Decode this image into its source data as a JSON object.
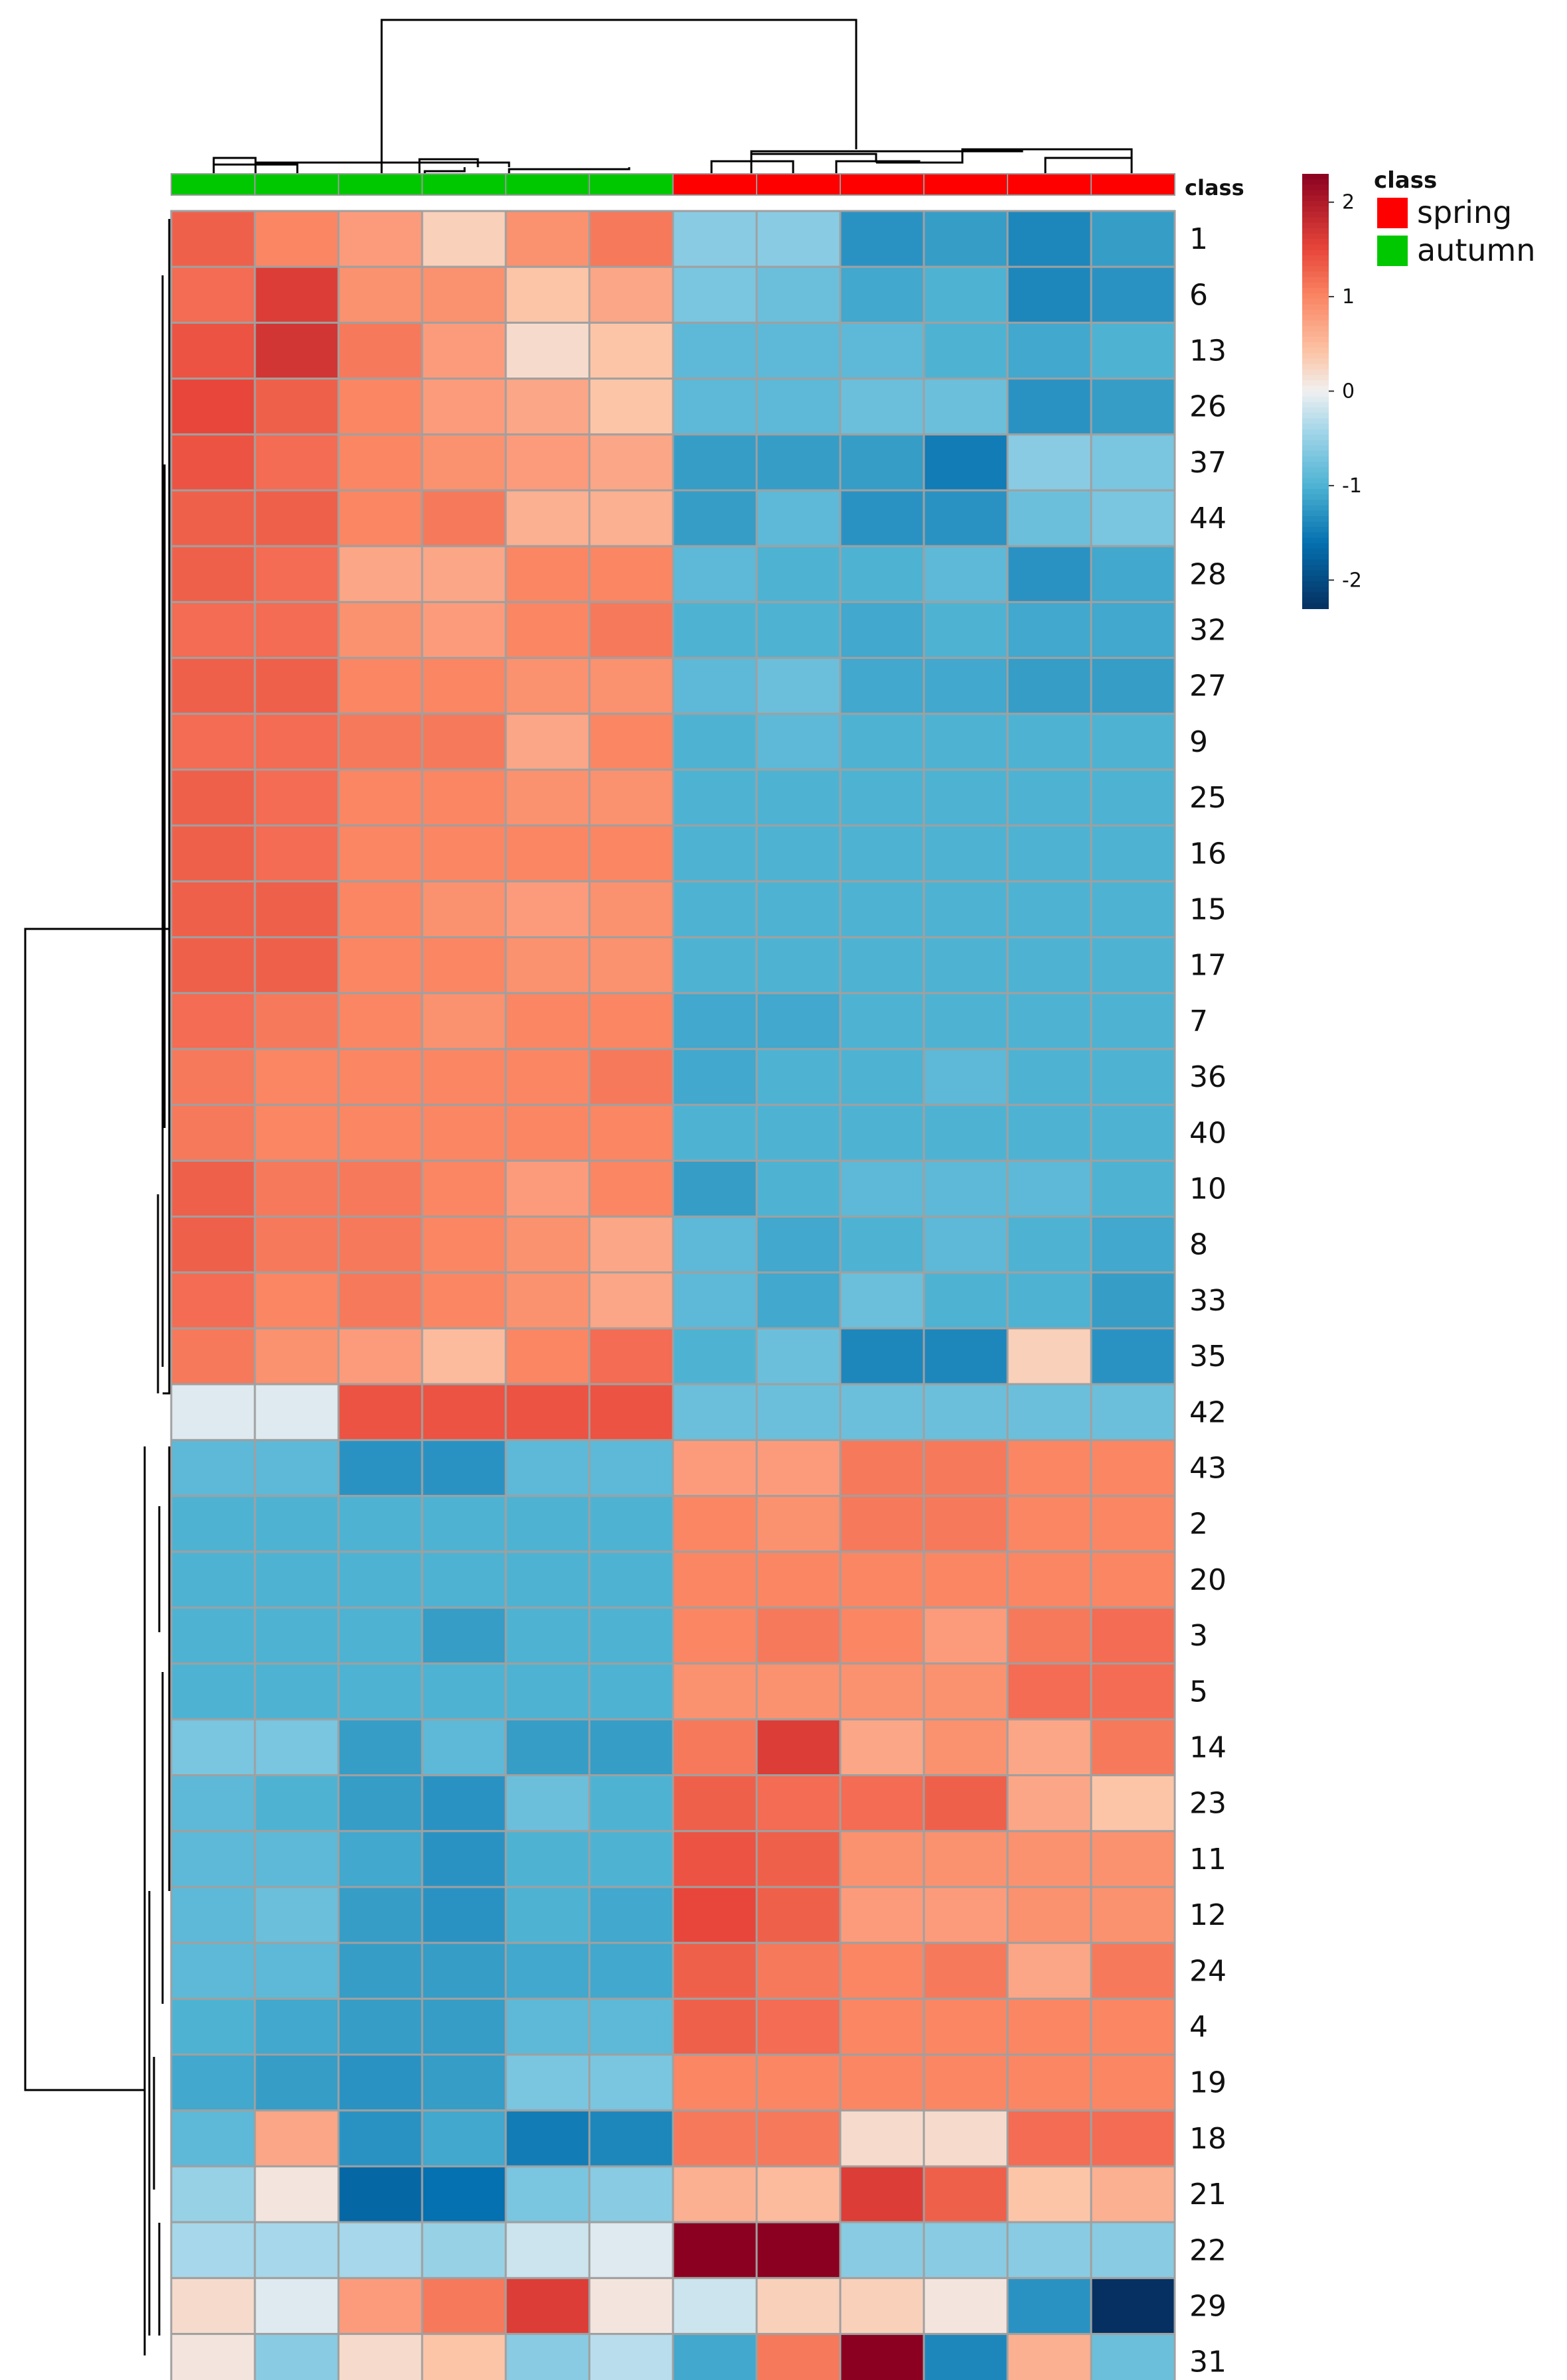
{
  "chart_data": {
    "type": "heatmap",
    "title": "",
    "class_label": "class",
    "columns": [
      {
        "class": "autumn"
      },
      {
        "class": "autumn"
      },
      {
        "class": "autumn"
      },
      {
        "class": "autumn"
      },
      {
        "class": "autumn"
      },
      {
        "class": "autumn"
      },
      {
        "class": "spring"
      },
      {
        "class": "spring"
      },
      {
        "class": "spring"
      },
      {
        "class": "spring"
      },
      {
        "class": "spring"
      },
      {
        "class": "spring"
      }
    ],
    "row_labels": [
      "1",
      "6",
      "13",
      "26",
      "37",
      "44",
      "28",
      "32",
      "27",
      "9",
      "25",
      "16",
      "15",
      "17",
      "7",
      "36",
      "40",
      "10",
      "8",
      "33",
      "35",
      "42",
      "43",
      "2",
      "20",
      "3",
      "5",
      "14",
      "23",
      "11",
      "12",
      "24",
      "4",
      "19",
      "18",
      "21",
      "22",
      "29",
      "31"
    ],
    "values": [
      [
        1.3,
        1.0,
        0.8,
        0.3,
        0.9,
        1.1,
        -0.6,
        -0.6,
        -1.3,
        -1.2,
        -1.4,
        -1.2
      ],
      [
        1.2,
        1.6,
        0.9,
        0.9,
        0.4,
        0.7,
        -0.7,
        -0.8,
        -1.1,
        -1.0,
        -1.4,
        -1.3
      ],
      [
        1.4,
        1.7,
        1.1,
        0.8,
        0.2,
        0.4,
        -0.9,
        -0.9,
        -0.9,
        -1.0,
        -1.1,
        -1.0
      ],
      [
        1.5,
        1.3,
        1.0,
        0.8,
        0.7,
        0.4,
        -0.9,
        -0.9,
        -0.8,
        -0.8,
        -1.3,
        -1.2
      ],
      [
        1.4,
        1.2,
        1.0,
        0.9,
        0.8,
        0.7,
        -1.2,
        -1.2,
        -1.2,
        -1.5,
        -0.6,
        -0.7
      ],
      [
        1.3,
        1.3,
        1.0,
        1.1,
        0.6,
        0.6,
        -1.2,
        -0.9,
        -1.3,
        -1.3,
        -0.8,
        -0.7
      ],
      [
        1.3,
        1.2,
        0.7,
        0.7,
        1.0,
        1.0,
        -0.9,
        -1.0,
        -1.0,
        -0.9,
        -1.3,
        -1.1
      ],
      [
        1.2,
        1.2,
        0.9,
        0.8,
        1.0,
        1.1,
        -1.0,
        -1.0,
        -1.1,
        -1.0,
        -1.1,
        -1.1
      ],
      [
        1.3,
        1.3,
        1.0,
        1.0,
        0.9,
        0.9,
        -0.9,
        -0.8,
        -1.1,
        -1.1,
        -1.2,
        -1.2
      ],
      [
        1.2,
        1.2,
        1.1,
        1.1,
        0.7,
        1.0,
        -1.0,
        -0.9,
        -1.0,
        -1.0,
        -1.0,
        -1.0
      ],
      [
        1.3,
        1.2,
        1.0,
        1.0,
        0.9,
        0.9,
        -1.0,
        -1.0,
        -1.0,
        -1.0,
        -1.0,
        -1.0
      ],
      [
        1.3,
        1.2,
        1.0,
        1.0,
        1.0,
        1.0,
        -1.0,
        -1.0,
        -1.0,
        -1.0,
        -1.0,
        -1.0
      ],
      [
        1.3,
        1.3,
        1.0,
        0.9,
        0.8,
        0.9,
        -1.0,
        -1.0,
        -1.0,
        -1.0,
        -1.0,
        -1.0
      ],
      [
        1.3,
        1.3,
        1.0,
        1.0,
        0.9,
        0.9,
        -1.0,
        -1.0,
        -1.0,
        -1.0,
        -1.0,
        -1.0
      ],
      [
        1.2,
        1.1,
        1.0,
        0.9,
        1.0,
        1.0,
        -1.1,
        -1.1,
        -1.0,
        -1.0,
        -1.0,
        -1.0
      ],
      [
        1.1,
        1.0,
        1.0,
        1.0,
        1.0,
        1.1,
        -1.1,
        -1.0,
        -1.0,
        -0.9,
        -1.0,
        -1.0
      ],
      [
        1.1,
        1.0,
        1.0,
        1.0,
        1.0,
        1.0,
        -1.0,
        -1.0,
        -1.0,
        -1.0,
        -1.0,
        -1.0
      ],
      [
        1.3,
        1.1,
        1.1,
        1.0,
        0.8,
        1.0,
        -1.2,
        -1.0,
        -0.9,
        -0.9,
        -0.9,
        -1.0
      ],
      [
        1.3,
        1.1,
        1.1,
        1.0,
        0.9,
        0.7,
        -0.9,
        -1.1,
        -1.0,
        -0.9,
        -1.0,
        -1.1
      ],
      [
        1.2,
        1.0,
        1.1,
        1.0,
        0.9,
        0.7,
        -0.9,
        -1.1,
        -0.8,
        -1.0,
        -1.0,
        -1.2
      ],
      [
        1.1,
        0.9,
        0.8,
        0.5,
        1.0,
        1.2,
        -1.0,
        -0.8,
        -1.4,
        -1.4,
        0.3,
        -1.3
      ],
      [
        -0.1,
        -0.1,
        1.4,
        1.4,
        1.4,
        1.4,
        -0.8,
        -0.8,
        -0.8,
        -0.8,
        -0.8,
        -0.8
      ],
      [
        -0.9,
        -0.9,
        -1.3,
        -1.3,
        -0.9,
        -0.9,
        0.8,
        0.8,
        1.1,
        1.1,
        1.0,
        1.0
      ],
      [
        -1.0,
        -1.0,
        -1.0,
        -1.0,
        -1.0,
        -1.0,
        1.0,
        0.9,
        1.1,
        1.1,
        1.0,
        1.0
      ],
      [
        -1.0,
        -1.0,
        -1.0,
        -1.0,
        -1.0,
        -1.0,
        1.0,
        1.0,
        1.0,
        1.0,
        1.0,
        1.0
      ],
      [
        -1.0,
        -1.0,
        -1.0,
        -1.2,
        -1.0,
        -1.0,
        1.0,
        1.1,
        1.0,
        0.8,
        1.1,
        1.2
      ],
      [
        -1.0,
        -1.0,
        -1.0,
        -1.0,
        -1.0,
        -1.0,
        0.9,
        0.9,
        0.9,
        0.9,
        1.2,
        1.2
      ],
      [
        -0.7,
        -0.7,
        -1.2,
        -0.9,
        -1.2,
        -1.2,
        1.1,
        1.6,
        0.7,
        0.9,
        0.7,
        1.1
      ],
      [
        -0.9,
        -1.0,
        -1.2,
        -1.3,
        -0.8,
        -1.0,
        1.3,
        1.2,
        1.2,
        1.3,
        0.7,
        0.4
      ],
      [
        -0.9,
        -0.9,
        -1.1,
        -1.3,
        -1.0,
        -1.0,
        1.4,
        1.3,
        0.9,
        0.9,
        0.9,
        0.9
      ],
      [
        -0.9,
        -0.8,
        -1.2,
        -1.3,
        -1.0,
        -1.1,
        1.5,
        1.3,
        0.8,
        0.8,
        0.9,
        0.9
      ],
      [
        -0.9,
        -0.9,
        -1.2,
        -1.2,
        -1.1,
        -1.1,
        1.3,
        1.1,
        1.0,
        1.1,
        0.7,
        1.1
      ],
      [
        -1.0,
        -1.1,
        -1.2,
        -1.2,
        -0.9,
        -0.9,
        1.3,
        1.2,
        1.0,
        1.0,
        1.0,
        1.0
      ],
      [
        -1.1,
        -1.2,
        -1.3,
        -1.2,
        -0.7,
        -0.7,
        1.0,
        1.0,
        1.0,
        1.0,
        1.0,
        1.0
      ],
      [
        -0.9,
        0.7,
        -1.3,
        -1.1,
        -1.5,
        -1.4,
        1.1,
        1.1,
        0.2,
        0.2,
        1.2,
        1.2
      ],
      [
        -0.5,
        0.1,
        -1.7,
        -1.6,
        -0.7,
        -0.6,
        0.6,
        0.5,
        1.6,
        1.3,
        0.4,
        0.6
      ],
      [
        -0.4,
        -0.4,
        -0.4,
        -0.5,
        -0.2,
        -0.1,
        2.3,
        2.3,
        -0.6,
        -0.6,
        -0.6,
        -0.6
      ],
      [
        0.2,
        -0.1,
        0.8,
        1.1,
        1.6,
        0.1,
        -0.2,
        0.3,
        0.3,
        0.1,
        -1.3,
        -2.3
      ],
      [
        0.1,
        -0.6,
        0.2,
        0.4,
        -0.6,
        -0.3,
        -1.1,
        1.1,
        2.4,
        -1.4,
        0.6,
        -0.8
      ]
    ],
    "color_scale": {
      "min": -2.3,
      "max": 2.3,
      "ticks": [
        "2",
        "1",
        "0",
        "-1",
        "-2"
      ],
      "tick_values": [
        2,
        1,
        0,
        -1,
        -2
      ],
      "stops": [
        {
          "v": -2.3,
          "c": "#053061"
        },
        {
          "v": -1.6,
          "c": "#0571b0"
        },
        {
          "v": -1.0,
          "c": "#4eb3d3"
        },
        {
          "v": -0.4,
          "c": "#a6d7ea"
        },
        {
          "v": 0.0,
          "c": "#f0f0f0"
        },
        {
          "v": 0.4,
          "c": "#fcc5a8"
        },
        {
          "v": 1.0,
          "c": "#fa8664"
        },
        {
          "v": 1.5,
          "c": "#e8463a"
        },
        {
          "v": 2.3,
          "c": "#8b0020"
        }
      ]
    },
    "legend": {
      "title": "class",
      "entries": [
        {
          "label": "spring",
          "color": "#ff0000"
        },
        {
          "label": "autumn",
          "color": "#00c800"
        }
      ]
    },
    "class_colors": {
      "spring": "#ff0000",
      "autumn": "#00c800"
    }
  }
}
